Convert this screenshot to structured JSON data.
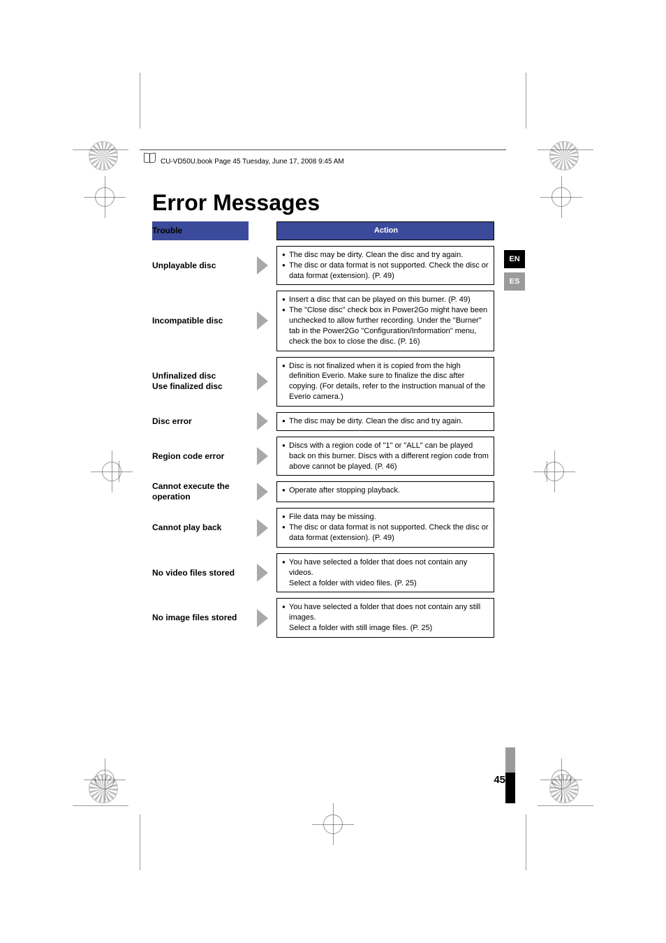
{
  "file_header": "CU-VD50U.book  Page 45  Tuesday, June 17, 2008  9:45 AM",
  "title": "Error Messages",
  "headers": {
    "trouble": "Trouble",
    "action": "Action"
  },
  "lang": {
    "active": "EN",
    "inactive": "ES"
  },
  "page_number": "45",
  "rows": [
    {
      "trouble": "Unplayable disc",
      "actions": [
        "The disc may be dirty. Clean the disc and try again.",
        "The disc or data format is not supported. Check the disc or data format (extension). (P. 49)"
      ]
    },
    {
      "trouble": "Incompatible disc",
      "actions": [
        "Insert a disc that can be played on this burner. (P. 49)",
        "The \"Close disc\" check box in Power2Go might have been unchecked to allow further recording. Under the \"Burner\" tab in the Power2Go \"Configuration/Information\" menu, check the box to close the disc. (P. 16)"
      ]
    },
    {
      "trouble": "Unfinalized disc\nUse finalized disc",
      "actions": [
        "Disc is not finalized when it is copied from the high definition Everio. Make sure to finalize the disc after copying. (For details, refer to the instruction manual of the Everio camera.)"
      ]
    },
    {
      "trouble": "Disc error",
      "actions": [
        "The disc may be dirty. Clean the disc and try again."
      ]
    },
    {
      "trouble": "Region code error",
      "actions": [
        "Discs with a region code of \"1\" or \"ALL\" can be played back on this burner. Discs with a different region code from above cannot be played. (P. 46)"
      ]
    },
    {
      "trouble": "Cannot execute the operation",
      "actions": [
        "Operate after stopping playback."
      ]
    },
    {
      "trouble": "Cannot play back",
      "actions": [
        "File data may be missing.",
        "The disc or data format is not supported. Check the disc or data format (extension). (P. 49)"
      ]
    },
    {
      "trouble": "No video files stored",
      "actions_with_sub": [
        {
          "main": "You have selected a folder that does not contain any videos.",
          "sub": "Select a folder with video files. (P. 25)"
        }
      ]
    },
    {
      "trouble": "No image files stored",
      "actions_with_sub": [
        {
          "main": "You have selected a folder that does not contain any still images.",
          "sub": "Select a folder with still image files. (P. 25)"
        }
      ]
    }
  ],
  "colors": {
    "header_bg": "#3b4a9a",
    "arrow": "#a9a9a9",
    "lang_inactive": "#9a9a9a"
  }
}
